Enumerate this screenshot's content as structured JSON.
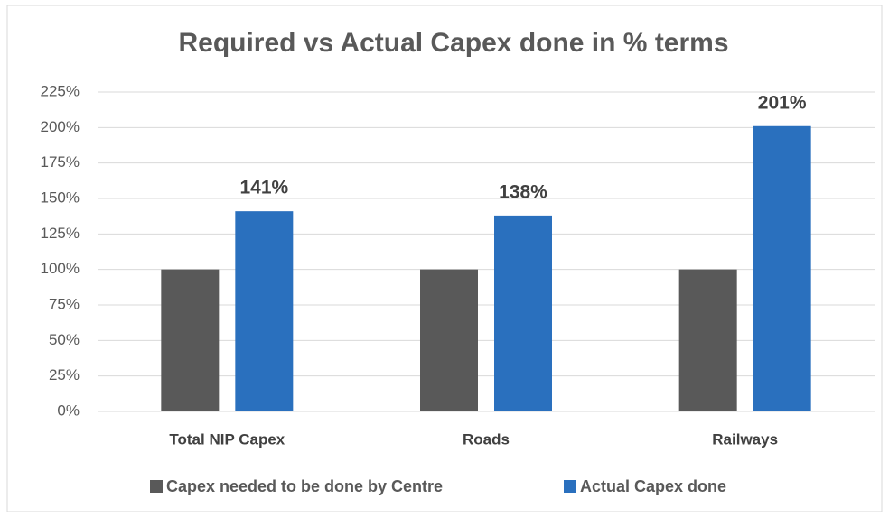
{
  "chart_data": {
    "type": "bar",
    "title": "Required vs Actual Capex done in % terms",
    "categories": [
      "Total NIP Capex",
      "Roads",
      "Railways"
    ],
    "series": [
      {
        "name": "Capex needed to be done by Centre",
        "color": "#595959",
        "values": [
          100,
          100,
          100
        ]
      },
      {
        "name": "Actual Capex done",
        "color": "#2a70be",
        "values": [
          141,
          138,
          201
        ],
        "value_labels": [
          "141%",
          "138%",
          "201%"
        ]
      }
    ],
    "ylim": [
      0,
      225
    ],
    "yticks": [
      {
        "value": 0,
        "label": "0%"
      },
      {
        "value": 25,
        "label": "25%"
      },
      {
        "value": 50,
        "label": "50%"
      },
      {
        "value": 75,
        "label": "75%"
      },
      {
        "value": 100,
        "label": "100%"
      },
      {
        "value": 125,
        "label": "125%"
      },
      {
        "value": 150,
        "label": "150%"
      },
      {
        "value": 175,
        "label": "175%"
      },
      {
        "value": 200,
        "label": "200%"
      },
      {
        "value": 225,
        "label": "225%"
      }
    ],
    "grid": true,
    "legend": "bottom"
  }
}
